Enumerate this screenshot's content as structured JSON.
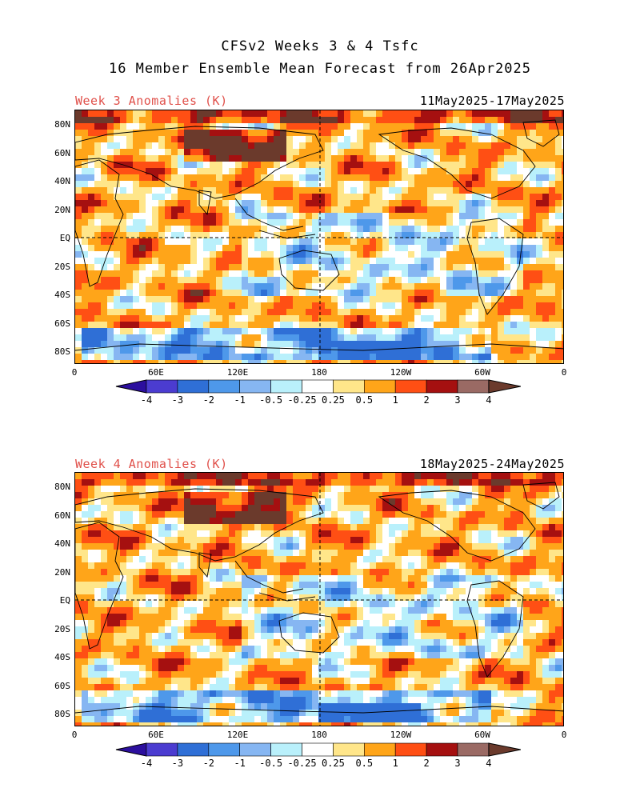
{
  "header": {
    "line1": "CFSv2 Weeks 3 & 4 Tsfc",
    "line2": "16 Member Ensemble Mean Forecast from 26Apr2025"
  },
  "panels": [
    {
      "label": "Week 3 Anomalies (K)",
      "dates": "11May2025-17May2025"
    },
    {
      "label": "Week 4 Anomalies (K)",
      "dates": "18May2025-24May2025"
    }
  ],
  "lat_labels": [
    "80N",
    "60N",
    "40N",
    "20N",
    "EQ",
    "20S",
    "40S",
    "60S",
    "80S"
  ],
  "lon_labels": [
    "0",
    "60E",
    "120E",
    "180",
    "120W",
    "60W",
    "0"
  ],
  "colorbar": {
    "labels": [
      "-4",
      "-3",
      "-2",
      "-1",
      "-0.5",
      "-0.25",
      "0.25",
      "0.5",
      "1",
      "2",
      "3",
      "4"
    ],
    "colors": [
      "#2c0f9e",
      "#4b3cd0",
      "#2f6fd6",
      "#4e98ea",
      "#86b6f2",
      "#b9f0fb",
      "#ffffff",
      "#ffe68a",
      "#ffa519",
      "#ff4f14",
      "#a51010",
      "#9a6a64",
      "#6b3a2c"
    ]
  },
  "map_data": {
    "type": "global_temperature_anomaly",
    "units": "K",
    "lon_range": [
      0,
      360
    ],
    "lat_range": [
      -90,
      90
    ],
    "colors": {
      "very_warm": "#6b3a2c",
      "warm3": "#a51010",
      "warm2": "#ff4f14",
      "warm1": "#ffa519",
      "warm05": "#ffe68a",
      "neutral": "#ffffff",
      "cool05": "#b9f0fb",
      "cool1": "#86b6f2",
      "cool2": "#4e98ea",
      "cool3": "#2f6fd6",
      "cool4": "#2c0f9e"
    }
  }
}
